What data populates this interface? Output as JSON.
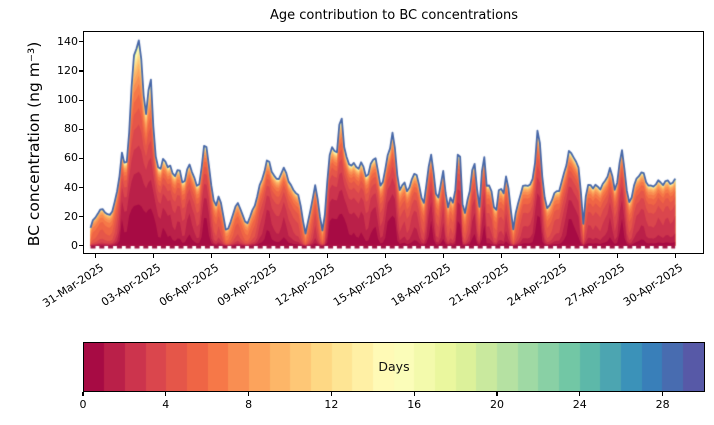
{
  "title": "Age contribution to BC concentrations",
  "axes": {
    "ylabel": "BC concentration (ng m⁻³)",
    "yticks": [
      0,
      20,
      40,
      60,
      80,
      100,
      120,
      140
    ],
    "xtick_labels": [
      "31-Mar-2025",
      "03-Apr-2025",
      "06-Apr-2025",
      "09-Apr-2025",
      "12-Apr-2025",
      "15-Apr-2025",
      "18-Apr-2025",
      "21-Apr-2025",
      "24-Apr-2025",
      "27-Apr-2025",
      "30-Apr-2025"
    ],
    "xtick_day_step": 3
  },
  "colorbar": {
    "label": "Days",
    "ticks": [
      0,
      4,
      8,
      12,
      16,
      20,
      24,
      28
    ],
    "vmin": 0,
    "vmax": 30,
    "segments": 30
  },
  "chart_data": {
    "type": "area",
    "title": "Age contribution to BC concentrations",
    "ylabel": "BC concentration (ng m⁻³)",
    "x_unit": "days since 31-Mar-2025 00:00",
    "ylim": [
      -5.8,
      147
    ],
    "xlim_days": [
      -0.65,
      31.43
    ],
    "grid": false,
    "age_bins": 30,
    "colormap_anchors": [
      "#9e0142",
      "#d53e4f",
      "#f46d43",
      "#fdae61",
      "#fee08b",
      "#ffffbf",
      "#e6f598",
      "#abdda4",
      "#66c2a5",
      "#3288bd",
      "#5e4fa2"
    ],
    "total_line_color": "#4667a8",
    "baseline_dash_color": "#a21545",
    "age_model": {
      "a0_base": 7.0,
      "a0_slope": 0.111,
      "a0_max": 6.5,
      "rise": 1.1,
      "tau_base": 1.5,
      "tau_slope": 0.02,
      "tail": 0.035,
      "tail_tau": 9
    },
    "total_series": [
      [
        -0.31,
        12
      ],
      [
        -0.15,
        18
      ],
      [
        0.0,
        20
      ],
      [
        0.15,
        23
      ],
      [
        0.3,
        27
      ],
      [
        0.45,
        24
      ],
      [
        0.62,
        20
      ],
      [
        0.75,
        22
      ],
      [
        0.88,
        25
      ],
      [
        1.0,
        32
      ],
      [
        1.14,
        42
      ],
      [
        1.29,
        67
      ],
      [
        1.38,
        57
      ],
      [
        1.5,
        55
      ],
      [
        1.6,
        62
      ],
      [
        1.7,
        80
      ],
      [
        1.8,
        100
      ],
      [
        1.91,
        130
      ],
      [
        2.0,
        136
      ],
      [
        2.07,
        140
      ],
      [
        2.14,
        133
      ],
      [
        2.2,
        138
      ],
      [
        2.27,
        131
      ],
      [
        2.33,
        127
      ],
      [
        2.42,
        112
      ],
      [
        2.48,
        100
      ],
      [
        2.55,
        90
      ],
      [
        2.6,
        86
      ],
      [
        2.69,
        103
      ],
      [
        2.79,
        121
      ],
      [
        2.88,
        108
      ],
      [
        2.95,
        78
      ],
      [
        3.05,
        60
      ],
      [
        3.16,
        56
      ],
      [
        3.31,
        55
      ],
      [
        3.45,
        58
      ],
      [
        3.57,
        57
      ],
      [
        3.7,
        55
      ],
      [
        3.83,
        53
      ],
      [
        3.95,
        48
      ],
      [
        4.1,
        51
      ],
      [
        4.24,
        54
      ],
      [
        4.38,
        47
      ],
      [
        4.5,
        42
      ],
      [
        4.62,
        47
      ],
      [
        4.75,
        52
      ],
      [
        4.86,
        58
      ],
      [
        5.0,
        49
      ],
      [
        5.12,
        44
      ],
      [
        5.22,
        40
      ],
      [
        5.35,
        46
      ],
      [
        5.5,
        58
      ],
      [
        5.64,
        74
      ],
      [
        5.72,
        66
      ],
      [
        5.8,
        58
      ],
      [
        5.9,
        44
      ],
      [
        6.0,
        35
      ],
      [
        6.1,
        31
      ],
      [
        6.21,
        29
      ],
      [
        6.32,
        33
      ],
      [
        6.45,
        28
      ],
      [
        6.57,
        20
      ],
      [
        6.72,
        8
      ],
      [
        6.85,
        13
      ],
      [
        7.0,
        21
      ],
      [
        7.15,
        25
      ],
      [
        7.3,
        30
      ],
      [
        7.45,
        25
      ],
      [
        7.6,
        18
      ],
      [
        7.76,
        15
      ],
      [
        7.9,
        19
      ],
      [
        8.05,
        24
      ],
      [
        8.2,
        29
      ],
      [
        8.38,
        36
      ],
      [
        8.55,
        45
      ],
      [
        8.72,
        54
      ],
      [
        8.9,
        60
      ],
      [
        9.0,
        56
      ],
      [
        9.1,
        52
      ],
      [
        9.26,
        43
      ],
      [
        9.4,
        46
      ],
      [
        9.55,
        49
      ],
      [
        9.78,
        54
      ],
      [
        9.9,
        48
      ],
      [
        10.03,
        41
      ],
      [
        10.18,
        38
      ],
      [
        10.3,
        37
      ],
      [
        10.45,
        33
      ],
      [
        10.6,
        25
      ],
      [
        10.81,
        9
      ],
      [
        10.95,
        17
      ],
      [
        11.1,
        27
      ],
      [
        11.25,
        36
      ],
      [
        11.33,
        40
      ],
      [
        11.42,
        34
      ],
      [
        11.55,
        22
      ],
      [
        11.69,
        11
      ],
      [
        11.8,
        19
      ],
      [
        11.9,
        38
      ],
      [
        12.0,
        58
      ],
      [
        12.1,
        63
      ],
      [
        12.2,
        65
      ],
      [
        12.3,
        67
      ],
      [
        12.4,
        64
      ],
      [
        12.5,
        66
      ],
      [
        12.62,
        93
      ],
      [
        12.7,
        89
      ],
      [
        12.8,
        72
      ],
      [
        12.95,
        58
      ],
      [
        13.1,
        54
      ],
      [
        13.25,
        58
      ],
      [
        13.4,
        52
      ],
      [
        13.55,
        55
      ],
      [
        13.66,
        60
      ],
      [
        13.8,
        53
      ],
      [
        13.95,
        48
      ],
      [
        14.1,
        50
      ],
      [
        14.3,
        58
      ],
      [
        14.43,
        64
      ],
      [
        14.55,
        52
      ],
      [
        14.69,
        41
      ],
      [
        14.85,
        47
      ],
      [
        15.0,
        55
      ],
      [
        15.16,
        65
      ],
      [
        15.31,
        80
      ],
      [
        15.45,
        64
      ],
      [
        15.6,
        45
      ],
      [
        15.73,
        38
      ],
      [
        15.85,
        41
      ],
      [
        15.95,
        42
      ],
      [
        16.1,
        37
      ],
      [
        16.25,
        41
      ],
      [
        16.4,
        49
      ],
      [
        16.5,
        56
      ],
      [
        16.6,
        47
      ],
      [
        16.75,
        36
      ],
      [
        16.92,
        28
      ],
      [
        17.05,
        38
      ],
      [
        17.18,
        52
      ],
      [
        17.28,
        70
      ],
      [
        17.4,
        56
      ],
      [
        17.55,
        36
      ],
      [
        17.64,
        31
      ],
      [
        17.75,
        38
      ],
      [
        17.88,
        46
      ],
      [
        17.95,
        49
      ],
      [
        18.05,
        38
      ],
      [
        18.16,
        26
      ],
      [
        18.3,
        33
      ],
      [
        18.45,
        30
      ],
      [
        18.55,
        38
      ],
      [
        18.65,
        52
      ],
      [
        18.73,
        70
      ],
      [
        18.82,
        58
      ],
      [
        18.9,
        40
      ],
      [
        18.99,
        15
      ],
      [
        19.08,
        24
      ],
      [
        19.2,
        31
      ],
      [
        19.35,
        42
      ],
      [
        19.5,
        62
      ],
      [
        19.6,
        50
      ],
      [
        19.73,
        33
      ],
      [
        19.81,
        26
      ],
      [
        19.92,
        45
      ],
      [
        20.02,
        66
      ],
      [
        20.12,
        52
      ],
      [
        20.22,
        40
      ],
      [
        20.35,
        43
      ],
      [
        20.5,
        32
      ],
      [
        20.64,
        21
      ],
      [
        20.76,
        29
      ],
      [
        20.88,
        44
      ],
      [
        21.0,
        34
      ],
      [
        21.1,
        40
      ],
      [
        21.2,
        48
      ],
      [
        21.3,
        41
      ],
      [
        21.42,
        30
      ],
      [
        21.52,
        7
      ],
      [
        21.62,
        15
      ],
      [
        21.75,
        26
      ],
      [
        21.9,
        34
      ],
      [
        22.05,
        40
      ],
      [
        22.2,
        43
      ],
      [
        22.35,
        43
      ],
      [
        22.5,
        39
      ],
      [
        22.65,
        52
      ],
      [
        22.81,
        78
      ],
      [
        22.92,
        72
      ],
      [
        23.05,
        52
      ],
      [
        23.2,
        33
      ],
      [
        23.33,
        24
      ],
      [
        23.45,
        28
      ],
      [
        23.55,
        31
      ],
      [
        23.68,
        34
      ],
      [
        23.8,
        37
      ],
      [
        23.95,
        40
      ],
      [
        24.1,
        45
      ],
      [
        24.25,
        52
      ],
      [
        24.42,
        66
      ],
      [
        24.52,
        59
      ],
      [
        24.62,
        62
      ],
      [
        24.75,
        61
      ],
      [
        24.88,
        58
      ],
      [
        25.0,
        47
      ],
      [
        25.1,
        32
      ],
      [
        25.19,
        16
      ],
      [
        25.28,
        30
      ],
      [
        25.4,
        39
      ],
      [
        25.55,
        43
      ],
      [
        25.68,
        39
      ],
      [
        25.82,
        41
      ],
      [
        25.97,
        43
      ],
      [
        26.1,
        39
      ],
      [
        26.25,
        42
      ],
      [
        26.4,
        47
      ],
      [
        26.55,
        52
      ],
      [
        26.7,
        47
      ],
      [
        26.85,
        39
      ],
      [
        27.0,
        47
      ],
      [
        27.1,
        60
      ],
      [
        27.21,
        69
      ],
      [
        27.3,
        55
      ],
      [
        27.4,
        40
      ],
      [
        27.5,
        29
      ],
      [
        27.62,
        31
      ],
      [
        27.75,
        38
      ],
      [
        27.9,
        45
      ],
      [
        28.05,
        50
      ],
      [
        28.2,
        49
      ],
      [
        28.35,
        47
      ],
      [
        28.5,
        43
      ],
      [
        28.65,
        40
      ],
      [
        28.8,
        42
      ],
      [
        28.95,
        44
      ],
      [
        29.1,
        43
      ],
      [
        29.25,
        42
      ],
      [
        29.4,
        43
      ],
      [
        29.55,
        44
      ],
      [
        29.7,
        45
      ],
      [
        29.85,
        44
      ],
      [
        30.0,
        45
      ]
    ]
  }
}
